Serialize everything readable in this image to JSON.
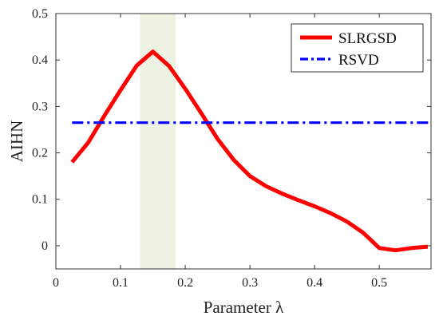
{
  "chart_data": {
    "type": "line",
    "xlabel": "Parameter λ",
    "ylabel": "AIHN",
    "xlim": [
      0,
      0.58
    ],
    "ylim": [
      -0.05,
      0.5
    ],
    "xticks": [
      "0",
      "0.1",
      "0.2",
      "0.3",
      "0.4",
      "0.5"
    ],
    "yticks": [
      "0",
      "0.1",
      "0.2",
      "0.3",
      "0.4",
      "0.5"
    ],
    "grid": false,
    "legend_position": "top-right",
    "highlight_band": {
      "x_from": 0.13,
      "x_to": 0.185,
      "color": "#eef2e2"
    },
    "series": [
      {
        "name": "SLRGSD",
        "color": "#ff0000",
        "style": "solid",
        "x": [
          0.025,
          0.05,
          0.075,
          0.1,
          0.125,
          0.15,
          0.175,
          0.2,
          0.225,
          0.25,
          0.275,
          0.3,
          0.325,
          0.35,
          0.375,
          0.4,
          0.425,
          0.45,
          0.475,
          0.5,
          0.525,
          0.55,
          0.575
        ],
        "y": [
          0.18,
          0.222,
          0.28,
          0.335,
          0.388,
          0.418,
          0.387,
          0.338,
          0.285,
          0.23,
          0.185,
          0.15,
          0.128,
          0.112,
          0.098,
          0.085,
          0.07,
          0.052,
          0.028,
          -0.005,
          -0.01,
          -0.005,
          -0.002
        ]
      },
      {
        "name": "RSVD",
        "color": "#0000ff",
        "style": "dash-dot",
        "x": [
          0.025,
          0.58
        ],
        "y": [
          0.265,
          0.265
        ]
      }
    ]
  }
}
